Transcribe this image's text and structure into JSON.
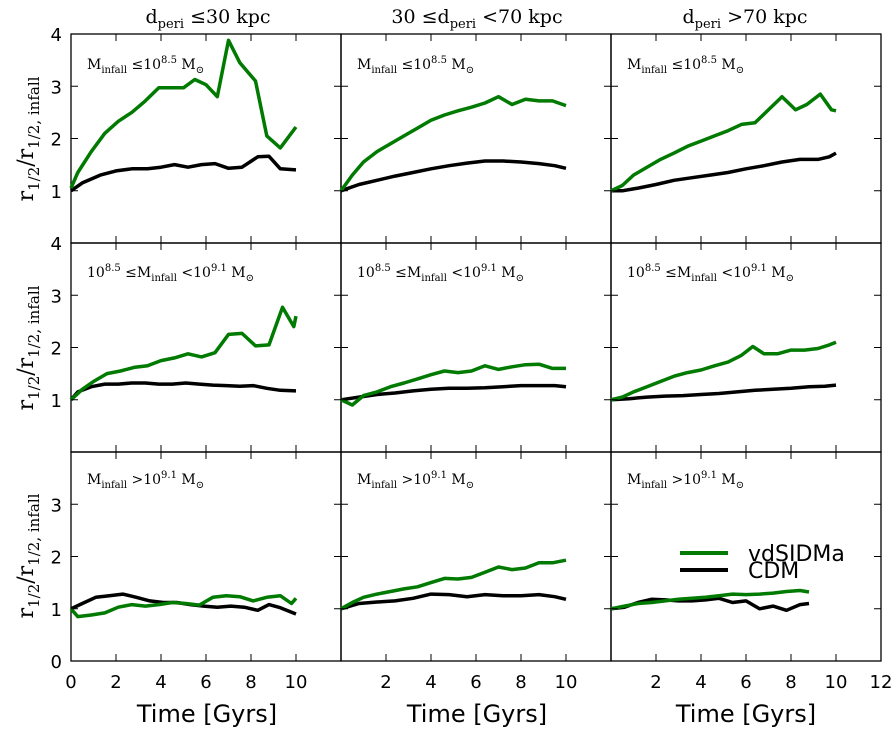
{
  "figure": {
    "xlabel": "Time [Gyrs]",
    "ylabel_main": "r",
    "ylabel_sub1": "1/2",
    "ylabel_sep": "/r",
    "ylabel_sub2": "1/2, infall",
    "col_titles": [
      {
        "pre": "d",
        "sub": "peri",
        "post": " ≤30 kpc"
      },
      {
        "pre": "30 ≤d",
        "sub": "peri",
        "post": " <70 kpc"
      },
      {
        "pre": "d",
        "sub": "peri",
        "post": " >70 kpc"
      }
    ],
    "row_labels": [
      {
        "a": "M",
        "a_sub": "infall",
        "b": " ≤10",
        "b_sup": "8.5",
        "c": " M",
        "c_sub": "⊙"
      },
      {
        "a": "10",
        "a_sup": "8.5",
        "b": " ≤M",
        "b_sub": "infall",
        "c": " <10",
        "c_sup": "9.1",
        "d": " M",
        "d_sub": "⊙"
      },
      {
        "a": "M",
        "a_sub": "infall",
        "b": " >10",
        "b_sup": "9.1",
        "c": " M",
        "c_sub": "⊙"
      }
    ],
    "legend": [
      {
        "label": "vdSIDMa",
        "color": "#007a00"
      },
      {
        "label": "CDM",
        "color": "#000000"
      }
    ]
  },
  "chart_data": {
    "type": "line",
    "layout": "3x3 grid",
    "xlim": [
      0,
      12
    ],
    "ylim": [
      0,
      4
    ],
    "x_ticks": [
      0,
      2,
      4,
      6,
      8,
      10,
      12
    ],
    "y_ticks": [
      0,
      1,
      2,
      3,
      4
    ],
    "legend_position": "bottom-right panel",
    "series_colors": {
      "vdSIDMa": "#007a00",
      "CDM": "#000000"
    },
    "panels": [
      {
        "row": 0,
        "col": 0,
        "vdSIDMa": {
          "x": [
            0,
            0.3,
            0.9,
            1.5,
            2.1,
            2.7,
            3.3,
            3.9,
            4.5,
            5.0,
            5.5,
            6.0,
            6.5,
            7.0,
            7.5,
            8.2,
            8.7,
            9.3,
            10.0
          ],
          "y": [
            1.05,
            1.35,
            1.75,
            2.1,
            2.33,
            2.5,
            2.72,
            2.97,
            2.97,
            2.97,
            3.13,
            3.03,
            2.8,
            3.88,
            3.45,
            3.1,
            2.05,
            1.82,
            2.22
          ]
        },
        "CDM": {
          "x": [
            0,
            0.5,
            1.3,
            2.0,
            2.7,
            3.4,
            4.0,
            4.6,
            5.2,
            5.8,
            6.4,
            7.0,
            7.6,
            8.3,
            8.8,
            9.3,
            10.0
          ],
          "y": [
            1.0,
            1.15,
            1.3,
            1.38,
            1.42,
            1.42,
            1.45,
            1.5,
            1.45,
            1.5,
            1.52,
            1.43,
            1.45,
            1.65,
            1.66,
            1.42,
            1.4
          ]
        }
      },
      {
        "row": 0,
        "col": 1,
        "vdSIDMa": {
          "x": [
            0,
            0.5,
            1.0,
            1.6,
            2.2,
            2.8,
            3.4,
            4.0,
            4.6,
            5.2,
            5.8,
            6.4,
            7.0,
            7.6,
            8.2,
            8.8,
            9.4,
            10.0
          ],
          "y": [
            1.0,
            1.3,
            1.55,
            1.75,
            1.9,
            2.05,
            2.2,
            2.35,
            2.45,
            2.53,
            2.6,
            2.68,
            2.8,
            2.65,
            2.75,
            2.72,
            2.72,
            2.63
          ]
        },
        "CDM": {
          "x": [
            0,
            0.8,
            1.6,
            2.4,
            3.2,
            4.0,
            4.8,
            5.6,
            6.4,
            7.2,
            8.0,
            8.8,
            9.5,
            10.0
          ],
          "y": [
            1.0,
            1.12,
            1.2,
            1.28,
            1.35,
            1.42,
            1.48,
            1.53,
            1.57,
            1.57,
            1.55,
            1.52,
            1.48,
            1.43
          ]
        }
      },
      {
        "row": 0,
        "col": 2,
        "vdSIDMa": {
          "x": [
            0,
            0.5,
            1.0,
            1.6,
            2.2,
            2.8,
            3.4,
            4.0,
            4.6,
            5.2,
            5.8,
            6.4,
            7.0,
            7.6,
            8.2,
            8.7,
            9.3,
            9.8,
            10.0
          ],
          "y": [
            1.0,
            1.1,
            1.3,
            1.45,
            1.6,
            1.72,
            1.85,
            1.95,
            2.05,
            2.15,
            2.27,
            2.3,
            2.55,
            2.8,
            2.55,
            2.65,
            2.85,
            2.55,
            2.53
          ]
        },
        "CDM": {
          "x": [
            0,
            0.5,
            1.2,
            2.0,
            2.8,
            3.6,
            4.4,
            5.2,
            6.0,
            6.8,
            7.6,
            8.4,
            9.2,
            9.7,
            10.0
          ],
          "y": [
            1.0,
            1.0,
            1.05,
            1.12,
            1.2,
            1.25,
            1.3,
            1.35,
            1.42,
            1.48,
            1.55,
            1.6,
            1.6,
            1.65,
            1.72
          ]
        }
      },
      {
        "row": 1,
        "col": 0,
        "vdSIDMa": {
          "x": [
            0,
            0.5,
            1.0,
            1.6,
            2.2,
            2.8,
            3.4,
            4.0,
            4.6,
            5.2,
            5.8,
            6.4,
            7.0,
            7.6,
            8.2,
            8.8,
            9.4,
            9.9,
            10.0
          ],
          "y": [
            1.0,
            1.2,
            1.35,
            1.5,
            1.55,
            1.62,
            1.65,
            1.75,
            1.8,
            1.88,
            1.82,
            1.9,
            2.25,
            2.27,
            2.03,
            2.05,
            2.77,
            2.4,
            2.6
          ]
        },
        "CDM": {
          "x": [
            0,
            0.3,
            0.9,
            1.5,
            2.1,
            2.7,
            3.3,
            3.9,
            4.5,
            5.1,
            5.7,
            6.3,
            6.9,
            7.5,
            8.1,
            8.7,
            9.3,
            10.0
          ],
          "y": [
            1.0,
            1.15,
            1.25,
            1.3,
            1.3,
            1.32,
            1.32,
            1.3,
            1.3,
            1.32,
            1.3,
            1.28,
            1.27,
            1.26,
            1.27,
            1.22,
            1.18,
            1.17
          ]
        }
      },
      {
        "row": 1,
        "col": 1,
        "vdSIDMa": {
          "x": [
            0,
            0.5,
            1.0,
            1.6,
            2.2,
            2.8,
            3.4,
            4.0,
            4.6,
            5.2,
            5.8,
            6.4,
            7.0,
            7.6,
            8.2,
            8.8,
            9.4,
            10.0
          ],
          "y": [
            1.0,
            0.9,
            1.08,
            1.15,
            1.25,
            1.32,
            1.4,
            1.48,
            1.55,
            1.52,
            1.55,
            1.65,
            1.58,
            1.63,
            1.67,
            1.68,
            1.6,
            1.6
          ]
        },
        "CDM": {
          "x": [
            0,
            0.8,
            1.6,
            2.4,
            3.2,
            4.0,
            4.8,
            5.6,
            6.4,
            7.2,
            8.0,
            8.8,
            9.5,
            10.0
          ],
          "y": [
            1.0,
            1.05,
            1.1,
            1.13,
            1.17,
            1.2,
            1.22,
            1.22,
            1.23,
            1.25,
            1.27,
            1.27,
            1.27,
            1.25
          ]
        }
      },
      {
        "row": 1,
        "col": 2,
        "vdSIDMa": {
          "x": [
            0,
            0.5,
            1.0,
            1.6,
            2.2,
            2.8,
            3.4,
            4.0,
            4.6,
            5.2,
            5.8,
            6.3,
            6.8,
            7.4,
            8.0,
            8.6,
            9.2,
            9.7,
            10.0
          ],
          "y": [
            1.0,
            1.05,
            1.15,
            1.25,
            1.35,
            1.45,
            1.52,
            1.57,
            1.65,
            1.72,
            1.85,
            2.02,
            1.88,
            1.88,
            1.95,
            1.95,
            1.98,
            2.05,
            2.1
          ]
        },
        "CDM": {
          "x": [
            0,
            0.8,
            1.6,
            2.4,
            3.2,
            4.0,
            4.8,
            5.6,
            6.4,
            7.2,
            8.0,
            8.8,
            9.5,
            10.0
          ],
          "y": [
            1.0,
            1.02,
            1.05,
            1.07,
            1.08,
            1.1,
            1.12,
            1.15,
            1.18,
            1.2,
            1.22,
            1.25,
            1.26,
            1.28
          ]
        }
      },
      {
        "row": 2,
        "col": 0,
        "vdSIDMa": {
          "x": [
            0,
            0.3,
            0.9,
            1.5,
            2.1,
            2.7,
            3.3,
            3.9,
            4.5,
            5.1,
            5.7,
            6.3,
            6.9,
            7.5,
            8.1,
            8.7,
            9.3,
            9.8,
            10.0
          ],
          "y": [
            1.0,
            0.85,
            0.88,
            0.92,
            1.03,
            1.08,
            1.05,
            1.08,
            1.12,
            1.1,
            1.07,
            1.22,
            1.25,
            1.23,
            1.15,
            1.22,
            1.25,
            1.1,
            1.2
          ]
        },
        "CDM": {
          "x": [
            0,
            0.5,
            1.1,
            1.7,
            2.3,
            2.9,
            3.5,
            4.1,
            4.7,
            5.3,
            5.9,
            6.5,
            7.1,
            7.7,
            8.3,
            8.8,
            9.3,
            10.0
          ],
          "y": [
            1.0,
            1.1,
            1.22,
            1.25,
            1.28,
            1.22,
            1.15,
            1.12,
            1.12,
            1.08,
            1.05,
            1.03,
            1.05,
            1.03,
            0.97,
            1.08,
            1.02,
            0.9
          ]
        }
      },
      {
        "row": 2,
        "col": 1,
        "vdSIDMa": {
          "x": [
            0,
            0.5,
            1.0,
            1.6,
            2.2,
            2.8,
            3.4,
            4.0,
            4.6,
            5.2,
            5.8,
            6.4,
            7.0,
            7.6,
            8.2,
            8.8,
            9.4,
            10.0
          ],
          "y": [
            1.0,
            1.12,
            1.22,
            1.28,
            1.33,
            1.38,
            1.42,
            1.5,
            1.58,
            1.57,
            1.6,
            1.7,
            1.8,
            1.75,
            1.78,
            1.88,
            1.88,
            1.93
          ]
        },
        "CDM": {
          "x": [
            0,
            0.8,
            1.6,
            2.4,
            3.2,
            4.0,
            4.8,
            5.6,
            6.4,
            7.2,
            8.0,
            8.8,
            9.5,
            10.0
          ],
          "y": [
            1.0,
            1.1,
            1.13,
            1.15,
            1.2,
            1.28,
            1.27,
            1.23,
            1.27,
            1.25,
            1.25,
            1.27,
            1.23,
            1.18
          ]
        }
      },
      {
        "row": 2,
        "col": 2,
        "vdSIDMa": {
          "x": [
            0,
            0.6,
            1.2,
            1.8,
            2.4,
            3.0,
            3.6,
            4.2,
            4.8,
            5.4,
            6.0,
            6.6,
            7.2,
            7.8,
            8.4,
            8.8
          ],
          "y": [
            1.0,
            1.05,
            1.1,
            1.12,
            1.15,
            1.18,
            1.2,
            1.22,
            1.25,
            1.28,
            1.27,
            1.28,
            1.3,
            1.33,
            1.35,
            1.32
          ]
        },
        "CDM": {
          "x": [
            0,
            0.6,
            1.2,
            1.8,
            2.4,
            3.0,
            3.6,
            4.2,
            4.8,
            5.4,
            6.0,
            6.6,
            7.2,
            7.8,
            8.4,
            8.8
          ],
          "y": [
            1.0,
            1.03,
            1.12,
            1.18,
            1.17,
            1.15,
            1.15,
            1.17,
            1.2,
            1.12,
            1.15,
            1.0,
            1.05,
            0.97,
            1.08,
            1.1
          ]
        }
      }
    ]
  }
}
